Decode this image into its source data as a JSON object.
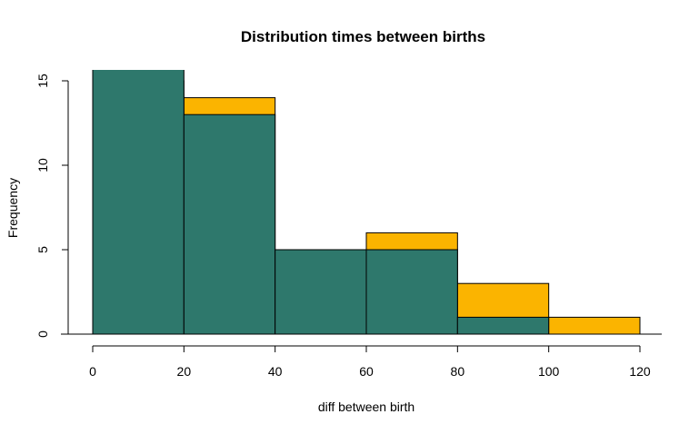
{
  "chart_data": {
    "type": "bar",
    "title": "Distribution times between births",
    "xlabel": "diff between birth",
    "ylabel": "Frequency",
    "bins": [
      [
        0,
        20
      ],
      [
        20,
        40
      ],
      [
        40,
        60
      ],
      [
        60,
        80
      ],
      [
        80,
        100
      ],
      [
        100,
        120
      ]
    ],
    "series": [
      {
        "color": "#FBB400",
        "values": [
          15,
          14,
          5,
          6,
          3,
          1
        ]
      },
      {
        "color": "#2E786C",
        "values": [
          16,
          13,
          5,
          5,
          1,
          0
        ]
      }
    ],
    "xlim": [
      0,
      120
    ],
    "ylim": [
      0,
      15
    ],
    "xticks": [
      0,
      20,
      40,
      60,
      80,
      100,
      120
    ],
    "yticks": [
      0,
      5,
      10,
      15
    ],
    "grid": false
  }
}
